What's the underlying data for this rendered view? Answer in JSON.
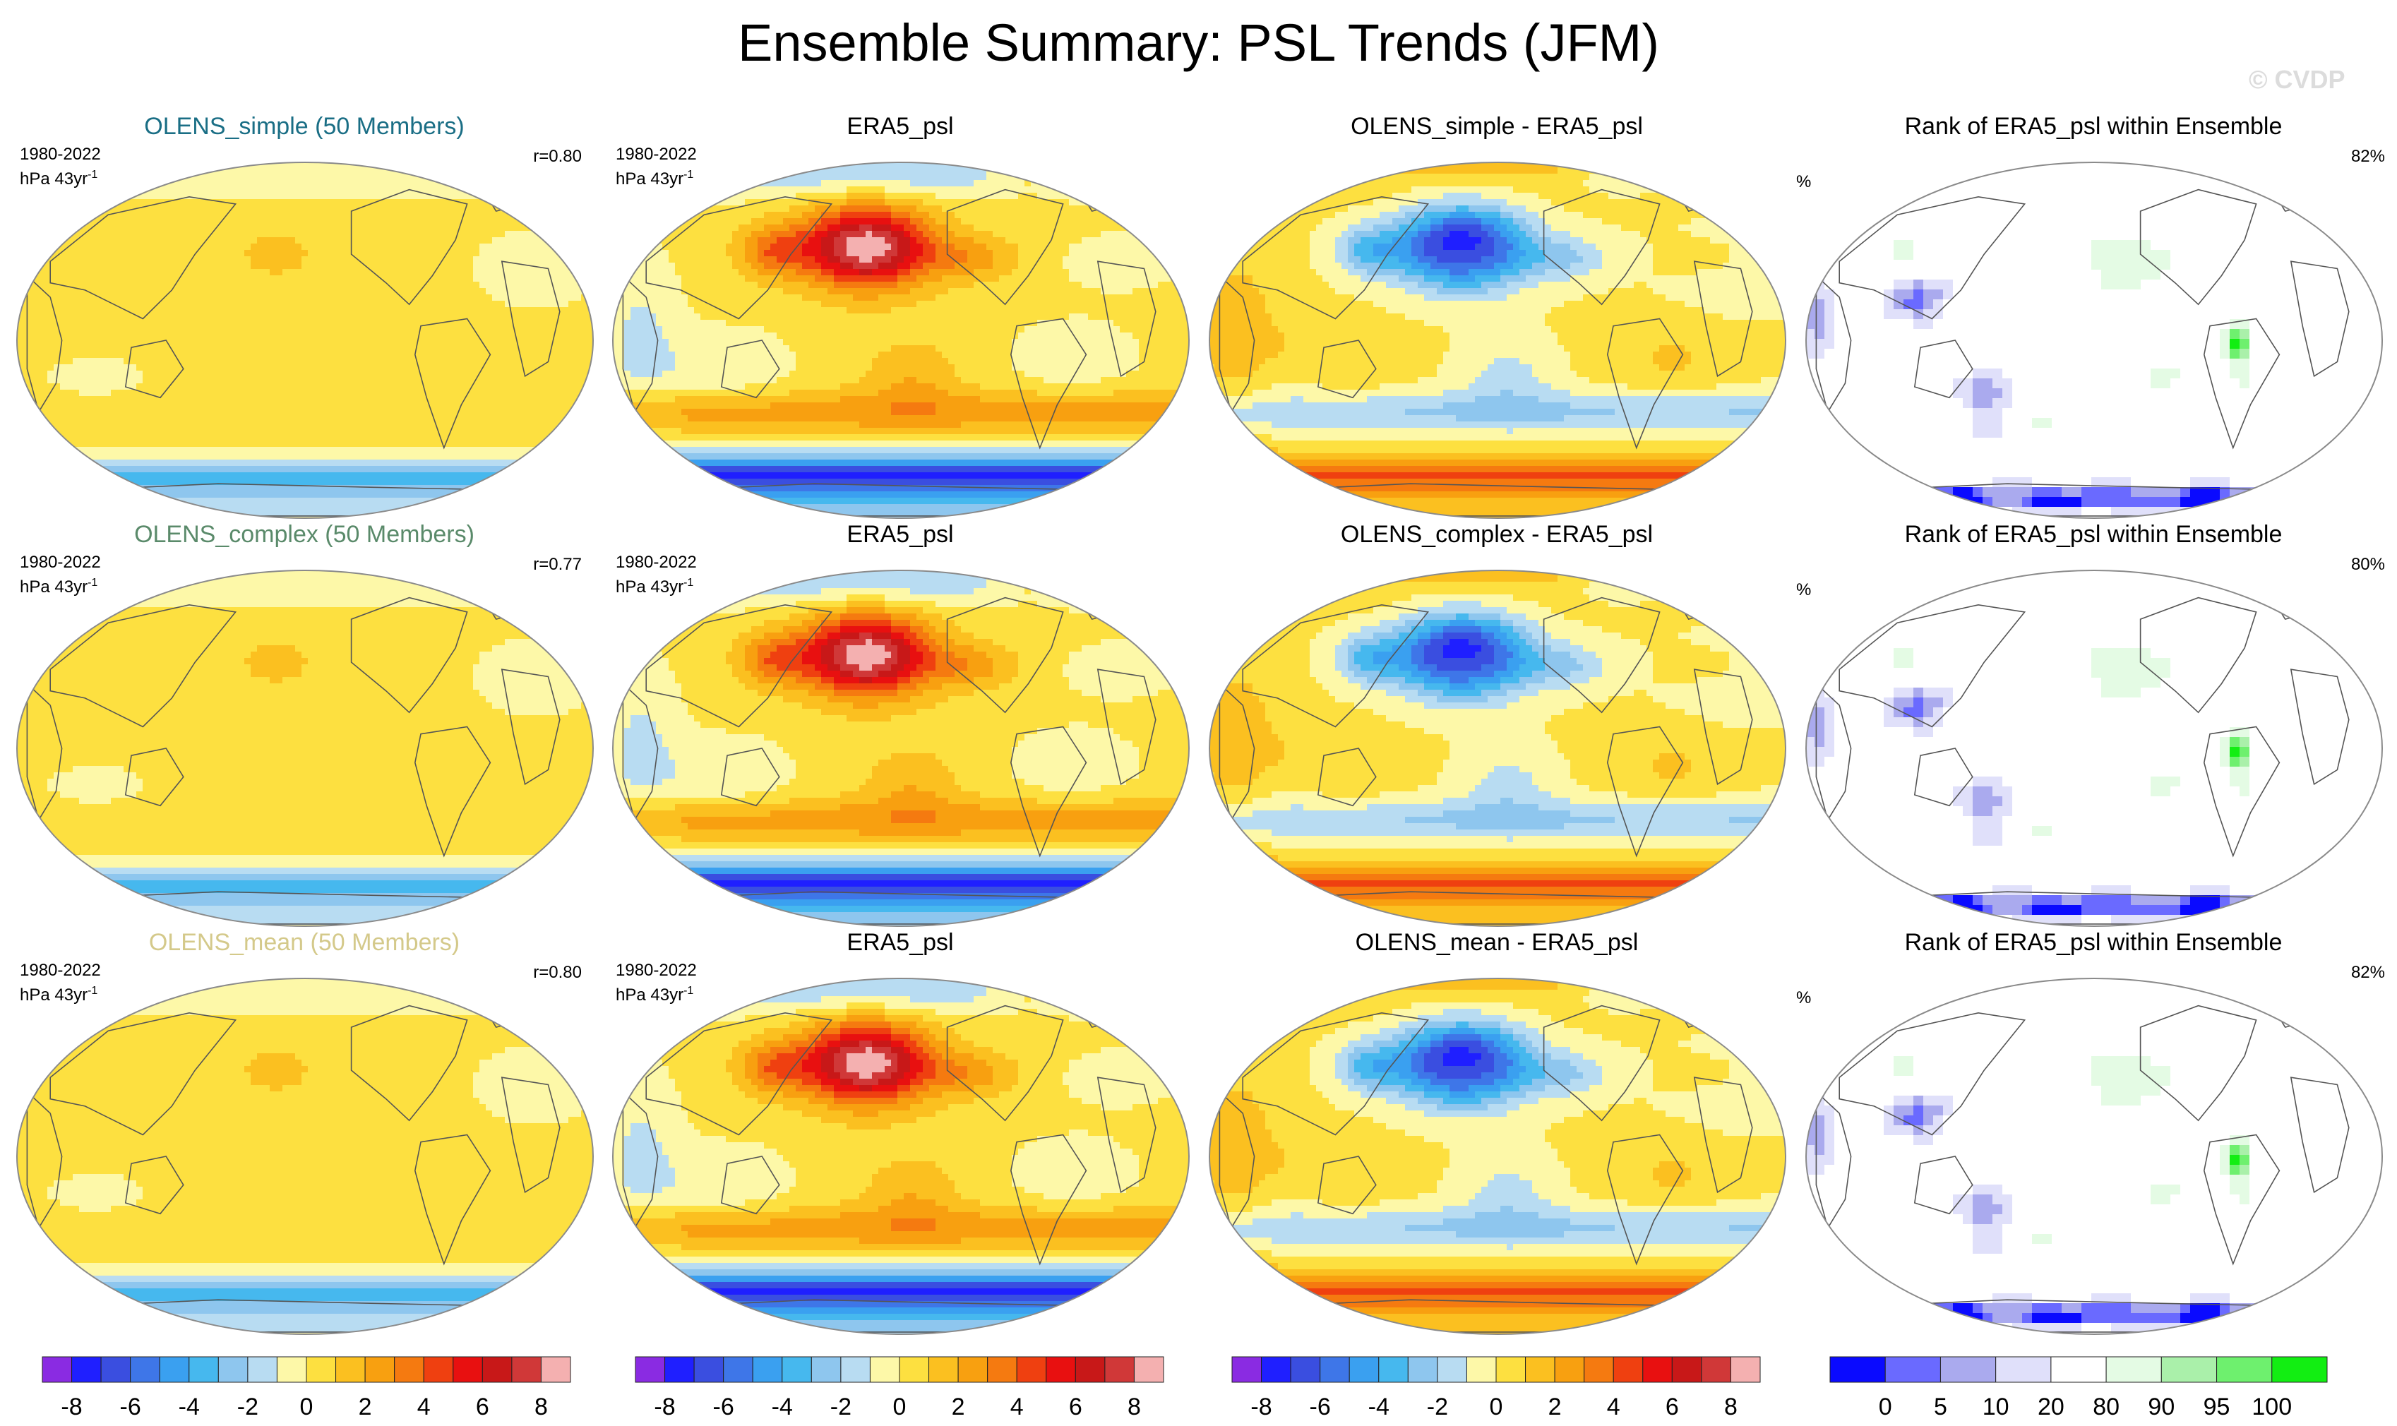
{
  "figure": {
    "title": "Ensemble Summary: PSL Trends (JFM)",
    "watermark": "© CVDP",
    "period": "1980-2022",
    "units": "hPa 43yr",
    "units_exp": "-1",
    "pct_symbol": "%"
  },
  "colors": {
    "title_simple": "#1a6e85",
    "title_complex": "#5a8a6a",
    "title_mean": "#d4c98a",
    "diverging": [
      "#8a2be2",
      "#1f1fff",
      "#3a4ee0",
      "#3e76e8",
      "#3aa0f0",
      "#46b8ee",
      "#8ec6ee",
      "#b8dcf2",
      "#fdf8a8",
      "#fde040",
      "#fbc020",
      "#f8a010",
      "#f57a10",
      "#ef4010",
      "#e81010",
      "#c81818",
      "#d03838",
      "#f4b0b0"
    ],
    "rank": [
      "#0a0aff",
      "#6a6aff",
      "#aaaaee",
      "#e0e0fa",
      "#ffffff",
      "#e4fbe4",
      "#aaf0aa",
      "#6ef06e",
      "#12ee12"
    ]
  },
  "chart_data": [
    {
      "type": "heatmap",
      "row": 1,
      "col": 1,
      "title": "OLENS_simple (50 Members)",
      "correlation": "r=0.80",
      "field": "model"
    },
    {
      "type": "heatmap",
      "row": 1,
      "col": 2,
      "title": "ERA5_psl",
      "field": "obs"
    },
    {
      "type": "heatmap",
      "row": 1,
      "col": 3,
      "title": "OLENS_simple - ERA5_psl",
      "field": "diff"
    },
    {
      "type": "heatmap",
      "row": 1,
      "col": 4,
      "title": "Rank of ERA5_psl within Ensemble",
      "rank_pct": "82%",
      "field": "rank"
    },
    {
      "type": "heatmap",
      "row": 2,
      "col": 1,
      "title": "OLENS_complex (50 Members)",
      "correlation": "r=0.77",
      "field": "model"
    },
    {
      "type": "heatmap",
      "row": 2,
      "col": 2,
      "title": "ERA5_psl",
      "field": "obs"
    },
    {
      "type": "heatmap",
      "row": 2,
      "col": 3,
      "title": "OLENS_complex - ERA5_psl",
      "field": "diff"
    },
    {
      "type": "heatmap",
      "row": 2,
      "col": 4,
      "title": "Rank of ERA5_psl within Ensemble",
      "rank_pct": "80%",
      "field": "rank"
    },
    {
      "type": "heatmap",
      "row": 3,
      "col": 1,
      "title": "OLENS_mean (50 Members)",
      "correlation": "r=0.80",
      "field": "model"
    },
    {
      "type": "heatmap",
      "row": 3,
      "col": 2,
      "title": "ERA5_psl",
      "field": "obs"
    },
    {
      "type": "heatmap",
      "row": 3,
      "col": 3,
      "title": "OLENS_mean - ERA5_psl",
      "field": "diff"
    },
    {
      "type": "heatmap",
      "row": 3,
      "col": 4,
      "title": "Rank of ERA5_psl within Ensemble",
      "rank_pct": "82%",
      "field": "rank"
    }
  ],
  "colorbars": {
    "trend_labels": [
      "-8",
      "-6",
      "-4",
      "-2",
      "0",
      "2",
      "4",
      "6",
      "8"
    ],
    "rank_labels": [
      "0",
      "5",
      "10",
      "20",
      "80",
      "90",
      "95",
      "100"
    ]
  }
}
